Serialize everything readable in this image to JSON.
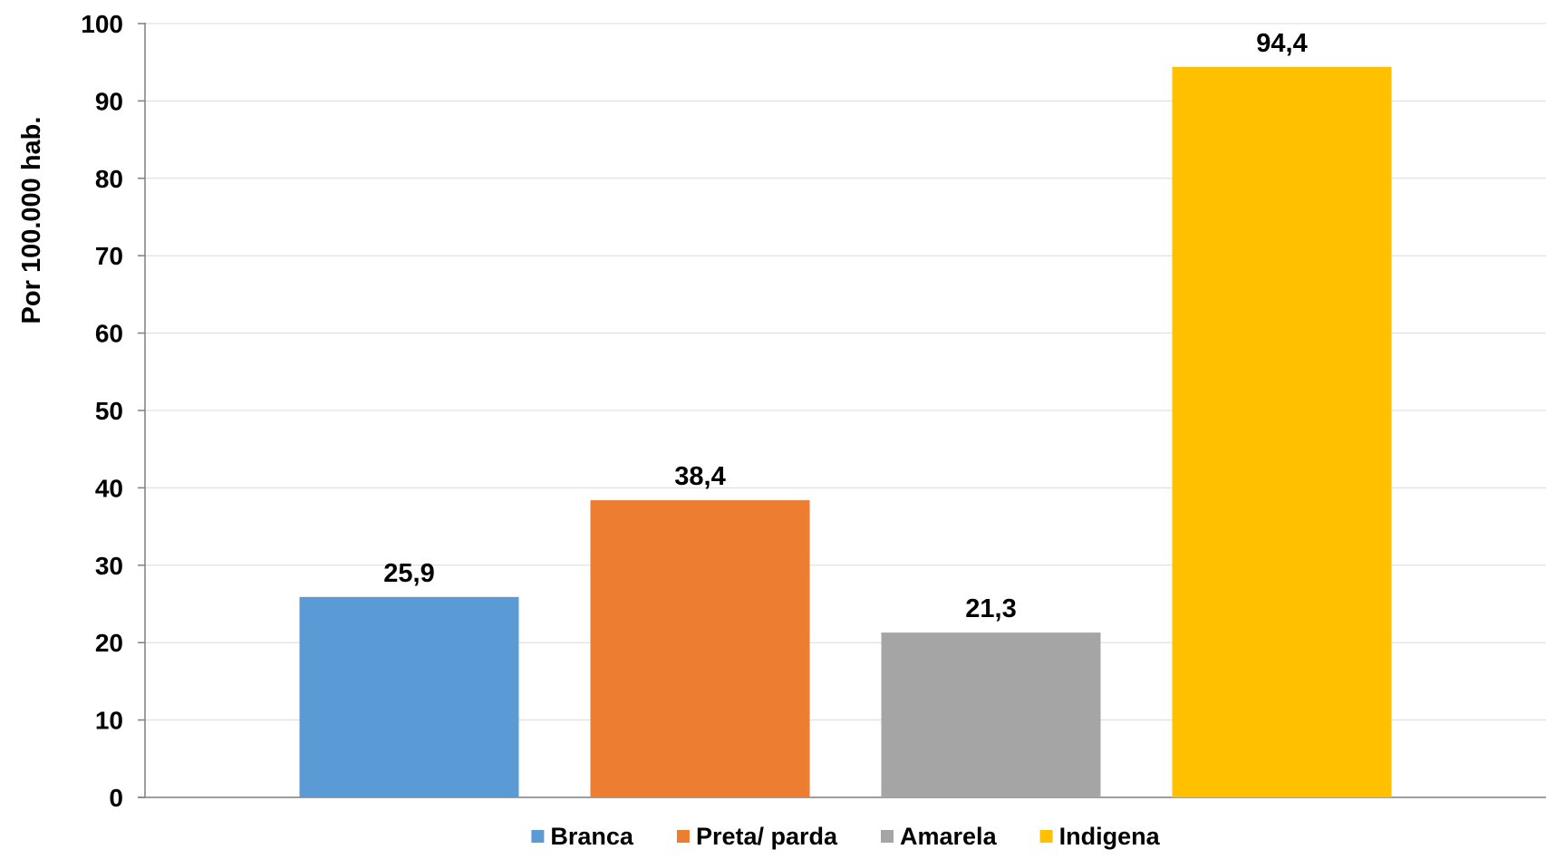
{
  "chart_data": {
    "type": "bar",
    "title": "",
    "xlabel": "",
    "ylabel": "Por 100.000 hab.",
    "ylim": [
      0,
      100
    ],
    "yticks": [
      0,
      10,
      20,
      30,
      40,
      50,
      60,
      70,
      80,
      90,
      100
    ],
    "grid": true,
    "legend_position": "bottom",
    "series": [
      {
        "name": "Branca",
        "value": 25.9,
        "label": "25,9",
        "color": "#5B9BD5"
      },
      {
        "name": "Preta/ parda",
        "value": 38.4,
        "label": "38,4",
        "color": "#ED7D31"
      },
      {
        "name": "Amarela",
        "value": 21.3,
        "label": "21,3",
        "color": "#A5A5A5"
      },
      {
        "name": "Indigena",
        "value": 94.4,
        "label": "94,4",
        "color": "#FFC000"
      }
    ]
  }
}
